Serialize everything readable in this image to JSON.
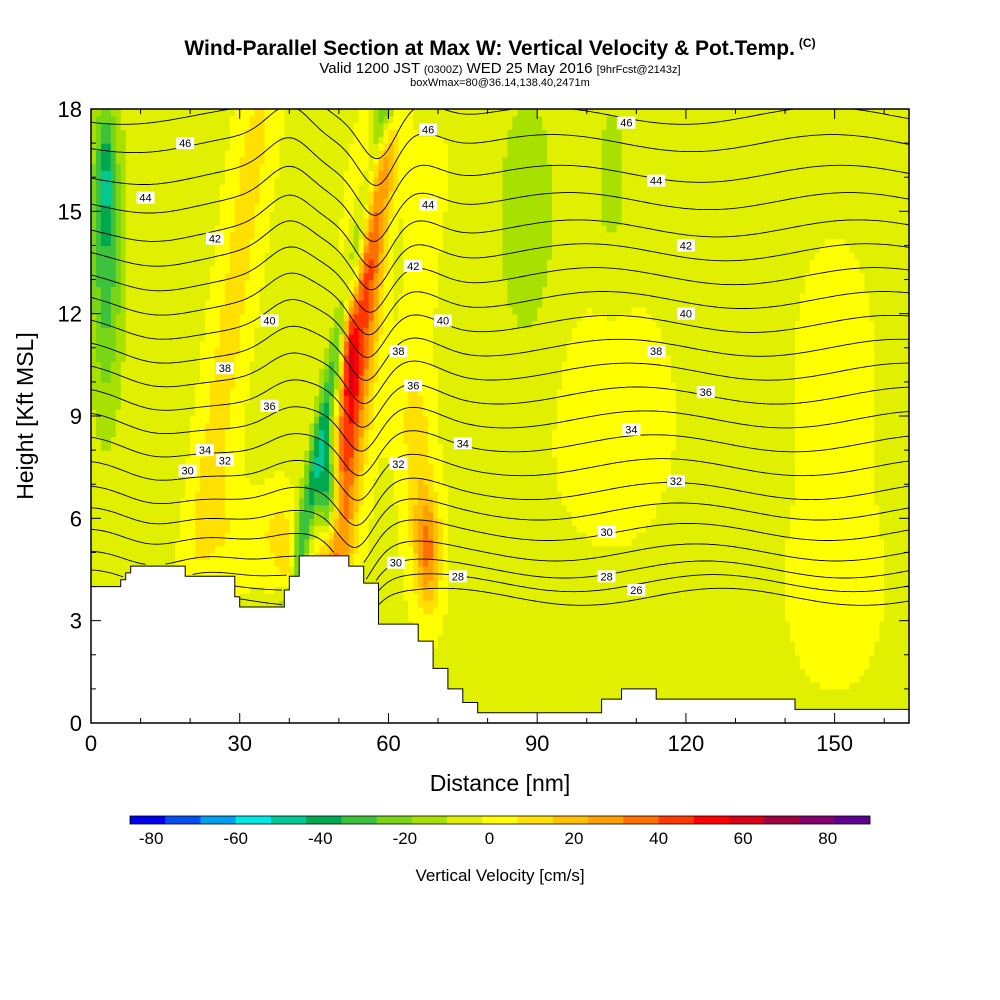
{
  "header": {
    "title": "Wind-Parallel Section at Max W: Vertical Velocity & Pot.Temp.",
    "title_mark": "(C)",
    "subtitle_valid": "Valid 1200 JST",
    "subtitle_utc": "(0300Z)",
    "subtitle_date": "WED 25 May 2016",
    "subtitle_fcst": "[9hrFcst@2143z]",
    "subtitle2": "boxWmax=80@36.14,138.40,2471m"
  },
  "colors": {
    "frame": "#000000",
    "terrain": "#ffffff",
    "contour": "#000000",
    "colorbar": [
      "#0000ee",
      "#0050f0",
      "#00a0f0",
      "#00e8e8",
      "#00c896",
      "#00a850",
      "#3cc23c",
      "#78d616",
      "#a8e000",
      "#e0f000",
      "#ffff00",
      "#ffe000",
      "#ffc000",
      "#ffa000",
      "#ff7000",
      "#ff3800",
      "#ff0000",
      "#d80018",
      "#a00040",
      "#800070",
      "#600090"
    ]
  },
  "chart_data": {
    "type": "heatmap",
    "xlabel": "Distance [nm]",
    "ylabel": "Height [Kft MSL]",
    "xlim": [
      0,
      165
    ],
    "ylim": [
      0,
      18
    ],
    "xticks": [
      "0",
      "30",
      "60",
      "90",
      "120",
      "150"
    ],
    "xtick_values": [
      0,
      30,
      60,
      90,
      120,
      150
    ],
    "yticks": [
      "0",
      "3",
      "6",
      "9",
      "12",
      "15",
      "18"
    ],
    "ytick_values": [
      0,
      3,
      6,
      9,
      12,
      15,
      18
    ],
    "colorbar": {
      "label": "Vertical Velocity [cm/s]",
      "tick_labels": [
        "-80",
        "-60",
        "-40",
        "-20",
        "0",
        "20",
        "40",
        "60",
        "80"
      ],
      "tick_values": [
        -80,
        -60,
        -40,
        -20,
        0,
        20,
        40,
        60,
        80
      ],
      "min": -85,
      "max": 90
    },
    "terrain": {
      "x": [
        0,
        6,
        6,
        7,
        7,
        8,
        8,
        10,
        10,
        19,
        19,
        20,
        20,
        29,
        29,
        30,
        30,
        32,
        32,
        39,
        39,
        40,
        40,
        42,
        42,
        45,
        45,
        52,
        52,
        55,
        55,
        58,
        58,
        66,
        66,
        69,
        69,
        72,
        72,
        75,
        75,
        78,
        78,
        81,
        81,
        103,
        103,
        107,
        107,
        114,
        114,
        142,
        142,
        165
      ],
      "y": [
        4.0,
        4.0,
        4.2,
        4.2,
        4.4,
        4.4,
        4.6,
        4.6,
        4.6,
        4.6,
        4.3,
        4.3,
        4.3,
        4.3,
        3.7,
        3.7,
        3.4,
        3.4,
        3.4,
        3.4,
        3.9,
        3.9,
        4.3,
        4.3,
        4.9,
        4.9,
        4.9,
        4.9,
        4.6,
        4.6,
        4.1,
        4.1,
        2.9,
        2.9,
        2.4,
        2.4,
        1.6,
        1.6,
        1.0,
        1.0,
        0.6,
        0.6,
        0.3,
        0.3,
        0.3,
        0.3,
        0.7,
        0.7,
        1.0,
        1.0,
        0.7,
        0.7,
        0.4,
        0.4
      ]
    },
    "velocity_features": [
      {
        "type": "ridge",
        "x0": 49,
        "y0": 5,
        "x1": 58,
        "y1": 16,
        "sigma_x": 3.5,
        "amp": 48
      },
      {
        "type": "ridge",
        "x0": 42,
        "y0": 5,
        "x1": 59,
        "y1": 18,
        "sigma_x": 2.0,
        "amp": -34
      },
      {
        "type": "blob",
        "x": 48,
        "y": 6.7,
        "sx": 2.2,
        "sy": 1.7,
        "amp": -55
      },
      {
        "type": "blob",
        "x": 52,
        "y": 11.3,
        "sx": 1.5,
        "sy": 1.8,
        "amp": 30
      },
      {
        "type": "ridge",
        "x0": 23,
        "y0": 6,
        "x1": 33,
        "y1": 17,
        "sigma_x": 3.5,
        "amp": 14
      },
      {
        "type": "ridge",
        "x0": 14,
        "y0": 7,
        "x1": 21,
        "y1": 18,
        "sigma_x": 3.0,
        "amp": -6
      },
      {
        "type": "blob",
        "x": 3,
        "y": 14,
        "sx": 3.5,
        "sy": 5,
        "amp": -30
      },
      {
        "type": "blob",
        "x": 3,
        "y": 16,
        "sx": 1.5,
        "sy": 1.5,
        "amp": -18
      },
      {
        "type": "blob",
        "x": 68,
        "y": 5,
        "sx": 2.5,
        "sy": 1.6,
        "amp": 35
      },
      {
        "type": "blob",
        "x": 66,
        "y": 7.5,
        "sx": 3,
        "sy": 2.5,
        "amp": 15
      },
      {
        "type": "blob",
        "x": 38,
        "y": 5.5,
        "sx": 4,
        "sy": 1.2,
        "amp": 14
      },
      {
        "type": "blob",
        "x": 40,
        "y": 4.5,
        "sx": 1.5,
        "sy": 0.8,
        "amp": 24
      },
      {
        "type": "blob",
        "x": 28,
        "y": 5.5,
        "sx": 4,
        "sy": 1.5,
        "amp": 8
      },
      {
        "type": "ridge",
        "x0": 63,
        "y0": 9,
        "x1": 68,
        "y1": 16,
        "sigma_x": 4,
        "amp": 5
      },
      {
        "type": "blob",
        "x": 88,
        "y": 15,
        "sx": 6,
        "sy": 4,
        "amp": -14
      },
      {
        "type": "blob",
        "x": 105,
        "y": 16,
        "sx": 4,
        "sy": 3,
        "amp": -10
      },
      {
        "type": "blob",
        "x": 60,
        "y": 15,
        "sx": 3,
        "sy": 3,
        "amp": -8
      },
      {
        "type": "blob",
        "x": 105,
        "y": 9,
        "sx": 10,
        "sy": 3,
        "amp": 7
      },
      {
        "type": "blob",
        "x": 150,
        "y": 4,
        "sx": 8,
        "sy": 2.5,
        "amp": 6
      },
      {
        "type": "blob",
        "x": 150,
        "y": 10,
        "sx": 8,
        "sy": 4,
        "amp": 4
      },
      {
        "type": "blob",
        "x": 78,
        "y": 11,
        "sx": 7,
        "sy": 4,
        "amp": -2
      }
    ],
    "velocity_background": -3,
    "potential_temperature": {
      "base_levels": [
        26,
        27,
        28,
        29,
        30,
        31,
        32,
        33,
        34,
        35,
        36,
        37,
        38,
        39,
        40,
        41,
        42,
        43,
        44,
        45,
        46,
        47
      ],
      "base_heights_kft": [
        3.7,
        4.1,
        4.5,
        5.0,
        5.6,
        6.2,
        6.8,
        7.5,
        8.2,
        8.9,
        9.6,
        10.3,
        11.0,
        11.7,
        12.4,
        13.1,
        13.8,
        14.5,
        15.3,
        16.1,
        17.0,
        17.8
      ],
      "label_pos": [
        {
          "text": "46",
          "x": 19,
          "y": 17.0
        },
        {
          "text": "44",
          "x": 11,
          "y": 15.4
        },
        {
          "text": "42",
          "x": 25,
          "y": 14.2
        },
        {
          "text": "40",
          "x": 36,
          "y": 11.8
        },
        {
          "text": "38",
          "x": 27,
          "y": 10.4
        },
        {
          "text": "36",
          "x": 36,
          "y": 9.3
        },
        {
          "text": "34",
          "x": 23,
          "y": 8.0
        },
        {
          "text": "32",
          "x": 27,
          "y": 7.7
        },
        {
          "text": "30",
          "x": 19.5,
          "y": 7.4
        },
        {
          "text": "46",
          "x": 68,
          "y": 17.4
        },
        {
          "text": "44",
          "x": 68,
          "y": 15.2
        },
        {
          "text": "42",
          "x": 65,
          "y": 13.4
        },
        {
          "text": "40",
          "x": 71,
          "y": 11.8
        },
        {
          "text": "38",
          "x": 62,
          "y": 10.9
        },
        {
          "text": "36",
          "x": 65,
          "y": 9.9
        },
        {
          "text": "34",
          "x": 75,
          "y": 8.2
        },
        {
          "text": "32",
          "x": 62,
          "y": 7.6
        },
        {
          "text": "30",
          "x": 61.5,
          "y": 4.7
        },
        {
          "text": "28",
          "x": 74,
          "y": 4.3
        },
        {
          "text": "46",
          "x": 108,
          "y": 17.6
        },
        {
          "text": "44",
          "x": 114,
          "y": 15.9
        },
        {
          "text": "42",
          "x": 120,
          "y": 14.0
        },
        {
          "text": "40",
          "x": 120,
          "y": 12.0
        },
        {
          "text": "38",
          "x": 114,
          "y": 10.9
        },
        {
          "text": "36",
          "x": 124,
          "y": 9.7
        },
        {
          "text": "34",
          "x": 109,
          "y": 8.6
        },
        {
          "text": "32",
          "x": 118,
          "y": 7.1
        },
        {
          "text": "30",
          "x": 104,
          "y": 5.6
        },
        {
          "text": "28",
          "x": 104,
          "y": 4.3
        },
        {
          "text": "26",
          "x": 110,
          "y": 3.9
        }
      ]
    }
  }
}
